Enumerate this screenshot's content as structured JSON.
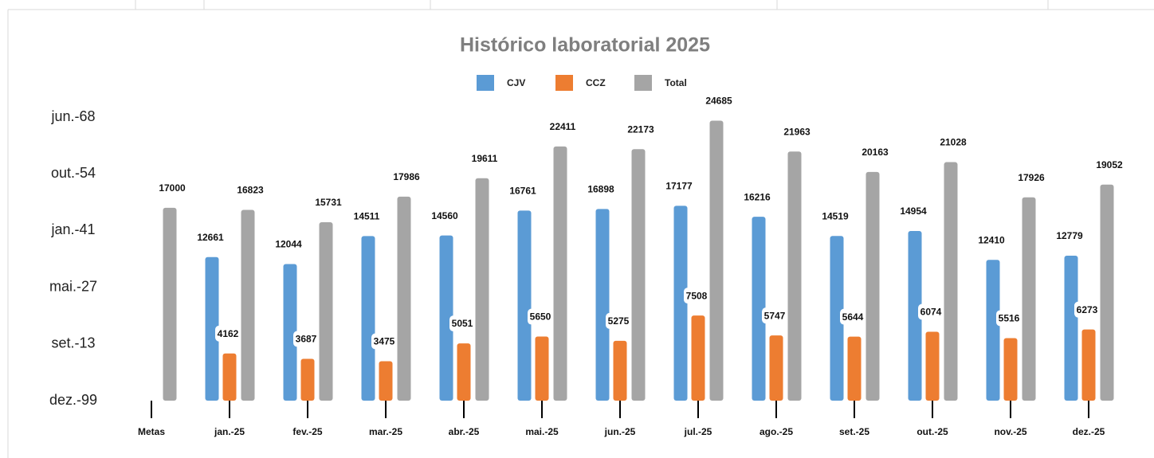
{
  "chart_data": {
    "type": "bar",
    "title": "Histórico laboratorial 2025",
    "categories": [
      "Metas",
      "jan.-25",
      "fev.-25",
      "mar.-25",
      "abr.-25",
      "mai.-25",
      "jun.-25",
      "jul.-25",
      "ago.-25",
      "set.-25",
      "out.-25",
      "nov.-25",
      "dez.-25"
    ],
    "series": [
      {
        "name": "CJV",
        "color": "#5b9bd5",
        "values": [
          null,
          12661,
          12044,
          14511,
          14560,
          16761,
          16898,
          17177,
          16216,
          14519,
          14954,
          12410,
          12779
        ]
      },
      {
        "name": "CCZ",
        "color": "#ed7d31",
        "values": [
          null,
          4162,
          3687,
          3475,
          5051,
          5650,
          5275,
          7508,
          5747,
          5644,
          6074,
          5516,
          6273
        ]
      },
      {
        "name": "Total",
        "color": "#a5a5a5",
        "values": [
          17000,
          16823,
          15731,
          17986,
          19611,
          22411,
          22173,
          24685,
          21963,
          20163,
          21028,
          17926,
          19052
        ]
      }
    ],
    "ylim": [
      0,
      25000
    ],
    "yticks": [
      {
        "value": 0,
        "label": "dez.-99"
      },
      {
        "value": 5000,
        "label": "set.-13"
      },
      {
        "value": 10000,
        "label": "mai.-27"
      },
      {
        "value": 15000,
        "label": "jan.-41"
      },
      {
        "value": 20000,
        "label": "out.-54"
      },
      {
        "value": 25000,
        "label": "jun.-68"
      }
    ],
    "legend": "top"
  }
}
